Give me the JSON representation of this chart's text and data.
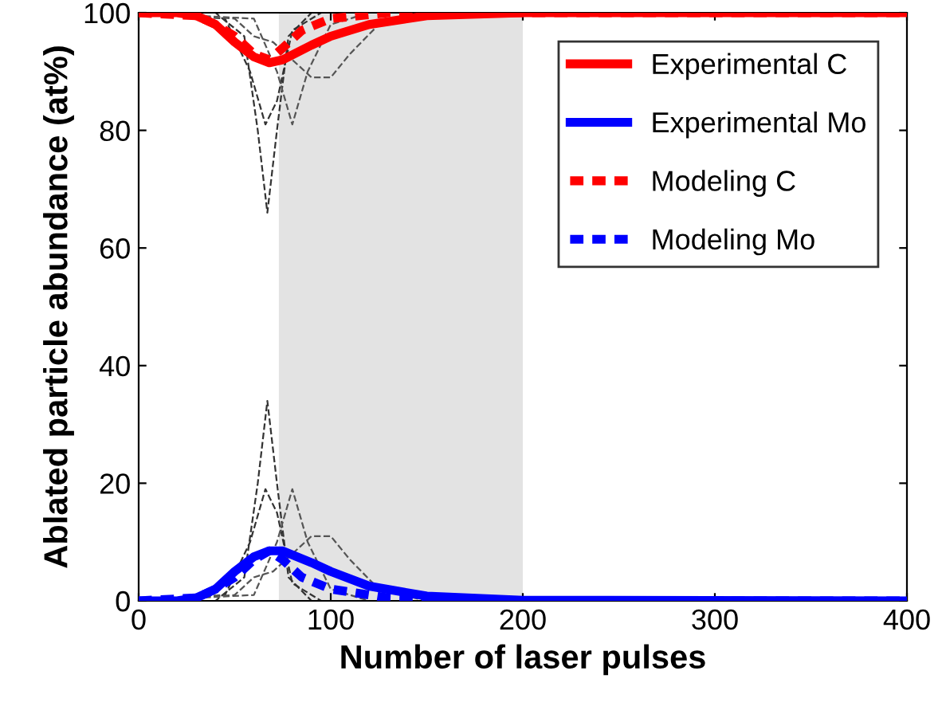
{
  "chart_data": {
    "type": "line",
    "xlabel": "Number of laser pulses",
    "ylabel": "Ablated particle abundance (at%)",
    "xlim": [
      0,
      400
    ],
    "xticks": [
      0,
      100,
      200,
      300,
      400
    ],
    "ylim": [
      0,
      100
    ],
    "yticks": [
      0,
      20,
      40,
      60,
      80,
      100
    ],
    "grid": false,
    "legend": "top right",
    "marker": "none",
    "bands": [
      {
        "axis": "x",
        "from": 73,
        "to": 200,
        "color": "#e3e3e3"
      }
    ],
    "series": [
      {
        "name": "Experimental C",
        "color": "#ff0000",
        "line_style": "solid",
        "x": [
          0,
          20,
          30,
          40,
          50,
          60,
          68,
          75,
          90,
          100,
          120,
          150,
          200,
          400
        ],
        "values": [
          100,
          100,
          99.5,
          98,
          95,
          92.5,
          91.5,
          92,
          94.5,
          96,
          98,
          99.5,
          100,
          100
        ]
      },
      {
        "name": "Experimental Mo",
        "color": "#0000ff",
        "line_style": "solid",
        "x": [
          0,
          20,
          30,
          40,
          50,
          60,
          68,
          75,
          90,
          100,
          120,
          150,
          200,
          400
        ],
        "values": [
          0,
          0,
          0.5,
          2,
          5,
          7.5,
          8.5,
          8.5,
          6.5,
          5,
          2.5,
          0.8,
          0.1,
          0
        ]
      },
      {
        "name": "Modeling C",
        "color": "#ff0000",
        "line_style": "dashed",
        "x": [
          0,
          30,
          40,
          50,
          60,
          68,
          75,
          85,
          100,
          130,
          400
        ],
        "values": [
          100,
          99.5,
          98,
          96,
          93,
          92,
          94,
          97,
          99,
          100,
          100
        ]
      },
      {
        "name": "Modeling Mo",
        "color": "#0000ff",
        "line_style": "dashed",
        "x": [
          0,
          30,
          40,
          50,
          60,
          68,
          75,
          85,
          100,
          130,
          170,
          400
        ],
        "values": [
          0,
          0.5,
          2,
          4,
          7,
          8.5,
          7,
          4,
          2,
          0.5,
          0,
          0
        ]
      },
      {
        "color": "#333333",
        "line_style": "dashed",
        "x": [
          0,
          40,
          55,
          62,
          67,
          72,
          78,
          90,
          200
        ],
        "values": [
          100,
          100,
          96,
          80,
          66,
          80,
          96,
          100,
          100
        ]
      },
      {
        "color": "#333333",
        "line_style": "dashed",
        "x": [
          0,
          45,
          58,
          66,
          72,
          80,
          95
        ],
        "values": [
          100,
          99,
          90,
          81,
          85,
          97,
          100
        ]
      },
      {
        "color": "#555555",
        "line_style": "dashed",
        "x": [
          0,
          50,
          60,
          70,
          80,
          90,
          100,
          110,
          125,
          150
        ],
        "values": [
          100,
          99,
          96,
          95,
          92,
          89,
          89,
          93,
          98,
          100
        ]
      },
      {
        "color": "#555555",
        "line_style": "dashed",
        "x": [
          0,
          60,
          72,
          80,
          88,
          100,
          120
        ],
        "values": [
          100,
          99,
          90,
          81,
          90,
          98,
          100
        ]
      },
      {
        "color": "#333333",
        "line_style": "dashed",
        "x": [
          0,
          40,
          55,
          62,
          67,
          72,
          78,
          90,
          200
        ],
        "values": [
          0,
          0,
          4,
          20,
          34,
          20,
          4,
          0,
          0
        ]
      },
      {
        "color": "#333333",
        "line_style": "dashed",
        "x": [
          0,
          45,
          58,
          66,
          72,
          80,
          95
        ],
        "values": [
          0,
          1,
          10,
          19,
          15,
          3,
          0
        ]
      },
      {
        "color": "#555555",
        "line_style": "dashed",
        "x": [
          0,
          50,
          60,
          70,
          80,
          90,
          100,
          110,
          125,
          150
        ],
        "values": [
          0,
          1,
          4,
          5,
          8,
          11,
          11,
          7,
          2,
          0
        ]
      },
      {
        "color": "#555555",
        "line_style": "dashed",
        "x": [
          0,
          60,
          72,
          80,
          88,
          100,
          120
        ],
        "values": [
          0,
          1,
          10,
          19,
          10,
          2,
          0
        ]
      }
    ]
  }
}
